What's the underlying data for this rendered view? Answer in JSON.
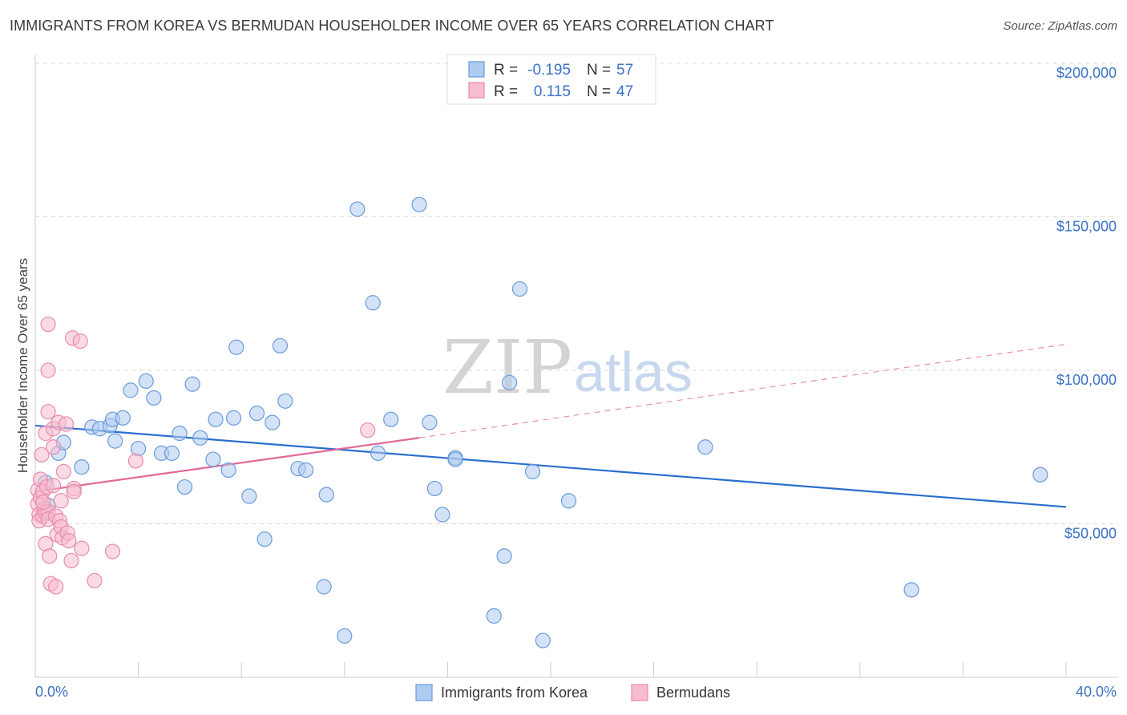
{
  "title": "IMMIGRANTS FROM KOREA VS BERMUDAN HOUSEHOLDER INCOME OVER 65 YEARS CORRELATION CHART",
  "source": "Source: ZipAtlas.com",
  "watermark": {
    "zip": "ZIP",
    "atlas": "atlas"
  },
  "colors": {
    "korea_fill": "#aecbf0",
    "korea_stroke": "#6a9bdc",
    "korea_line": "#2a6fcf",
    "bermuda_fill": "#f7bcd0",
    "bermuda_stroke": "#e88bab",
    "bermuda_line": "#e2689a",
    "tick_label": "#3b73c4",
    "grid": "#d8d8d8"
  },
  "legend": {
    "rows": [
      {
        "r_label": "R =",
        "r_value": "-0.195",
        "n_label": "N =",
        "n_value": "57"
      },
      {
        "r_label": "R =",
        "r_value": "0.115",
        "n_label": "N =",
        "n_value": "47"
      }
    ]
  },
  "chart_data": {
    "type": "scatter",
    "title": "IMMIGRANTS FROM KOREA VS BERMUDAN HOUSEHOLDER INCOME OVER 65 YEARS CORRELATION CHART",
    "xlabel": "",
    "ylabel": "Householder Income Over 65 years",
    "xlim": [
      0,
      40
    ],
    "ylim": [
      0,
      210000
    ],
    "x_tick_labels": [
      "0.0%",
      "40.0%"
    ],
    "y_ticks": [
      50000,
      100000,
      150000,
      200000
    ],
    "y_tick_labels": [
      "$50,000",
      "$100,000",
      "$150,000",
      "$200,000"
    ],
    "grid": true,
    "legend_position": "bottom",
    "series": [
      {
        "name": "Immigrants from Korea",
        "r": -0.195,
        "n": 57,
        "trend": {
          "x": [
            0,
            40
          ],
          "y": [
            82000,
            55500
          ],
          "dashed_extension": false
        },
        "points": [
          [
            0.4,
            63500
          ],
          [
            0.5,
            56000
          ],
          [
            0.9,
            73000
          ],
          [
            1.1,
            76500
          ],
          [
            1.8,
            68500
          ],
          [
            2.2,
            81500
          ],
          [
            2.5,
            81000
          ],
          [
            2.9,
            82000
          ],
          [
            3.0,
            84000
          ],
          [
            3.1,
            77000
          ],
          [
            3.4,
            84500
          ],
          [
            3.7,
            93500
          ],
          [
            4.0,
            74500
          ],
          [
            4.3,
            96500
          ],
          [
            4.6,
            91000
          ],
          [
            4.9,
            73000
          ],
          [
            5.3,
            73000
          ],
          [
            5.6,
            79500
          ],
          [
            5.8,
            62000
          ],
          [
            6.1,
            95500
          ],
          [
            6.4,
            78000
          ],
          [
            6.9,
            71000
          ],
          [
            7.0,
            84000
          ],
          [
            7.5,
            67500
          ],
          [
            7.7,
            84500
          ],
          [
            7.8,
            107500
          ],
          [
            8.3,
            59000
          ],
          [
            8.6,
            86000
          ],
          [
            8.9,
            45000
          ],
          [
            9.2,
            83000
          ],
          [
            9.5,
            108000
          ],
          [
            9.7,
            90000
          ],
          [
            10.2,
            68000
          ],
          [
            10.5,
            67500
          ],
          [
            11.2,
            29500
          ],
          [
            11.3,
            59500
          ],
          [
            12.0,
            13500
          ],
          [
            12.5,
            152500
          ],
          [
            13.1,
            122000
          ],
          [
            13.3,
            73000
          ],
          [
            13.8,
            84000
          ],
          [
            14.9,
            154000
          ],
          [
            15.3,
            83000
          ],
          [
            15.5,
            61500
          ],
          [
            15.8,
            53000
          ],
          [
            16.3,
            71500
          ],
          [
            16.3,
            71000
          ],
          [
            17.8,
            20000
          ],
          [
            18.2,
            39500
          ],
          [
            18.4,
            96000
          ],
          [
            18.8,
            126500
          ],
          [
            19.3,
            67000
          ],
          [
            19.7,
            12000
          ],
          [
            20.7,
            57500
          ],
          [
            26.0,
            75000
          ],
          [
            34.0,
            28500
          ],
          [
            39.0,
            66000
          ]
        ]
      },
      {
        "name": "Bermudans",
        "r": 0.115,
        "n": 47,
        "trend": {
          "x": [
            0,
            14.9
          ],
          "y": [
            60500,
            78000
          ],
          "dashed_extension": {
            "x": [
              14.9,
              40
            ],
            "y": [
              78000,
              108500
            ]
          }
        },
        "points": [
          [
            0.1,
            61000
          ],
          [
            0.1,
            56500
          ],
          [
            0.15,
            53000
          ],
          [
            0.15,
            51000
          ],
          [
            0.2,
            64500
          ],
          [
            0.2,
            58500
          ],
          [
            0.25,
            72500
          ],
          [
            0.3,
            60500
          ],
          [
            0.3,
            52500
          ],
          [
            0.35,
            55000
          ],
          [
            0.4,
            79500
          ],
          [
            0.4,
            53500
          ],
          [
            0.4,
            43500
          ],
          [
            0.45,
            62000
          ],
          [
            0.5,
            86500
          ],
          [
            0.5,
            54000
          ],
          [
            0.5,
            51500
          ],
          [
            0.55,
            39500
          ],
          [
            0.5,
            100000
          ],
          [
            0.5,
            115000
          ],
          [
            0.6,
            30500
          ],
          [
            0.7,
            75000
          ],
          [
            0.7,
            81000
          ],
          [
            0.7,
            62500
          ],
          [
            0.8,
            52500
          ],
          [
            0.85,
            46500
          ],
          [
            0.8,
            29500
          ],
          [
            0.9,
            83000
          ],
          [
            0.95,
            51000
          ],
          [
            1.0,
            49000
          ],
          [
            1.05,
            45500
          ],
          [
            1.1,
            67000
          ],
          [
            1.2,
            82500
          ],
          [
            1.25,
            47000
          ],
          [
            1.3,
            44500
          ],
          [
            1.4,
            38000
          ],
          [
            1.45,
            110500
          ],
          [
            1.5,
            61500
          ],
          [
            1.5,
            60500
          ],
          [
            1.75,
            109500
          ],
          [
            1.8,
            42000
          ],
          [
            2.3,
            31500
          ],
          [
            3.0,
            41000
          ],
          [
            3.9,
            70500
          ],
          [
            12.9,
            80500
          ],
          [
            1.0,
            57500
          ],
          [
            0.3,
            57000
          ]
        ]
      }
    ]
  },
  "bottom_legend": [
    "Immigrants from Korea",
    "Bermudans"
  ]
}
